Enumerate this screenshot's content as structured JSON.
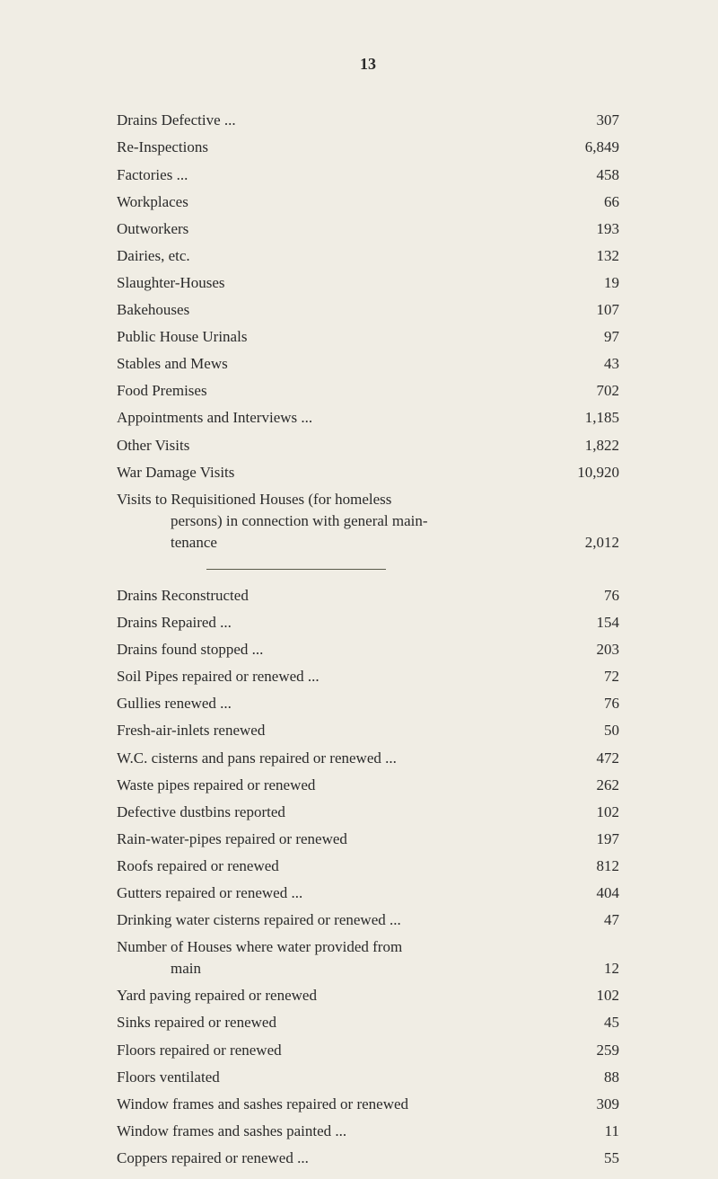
{
  "page_number": "13",
  "section1": [
    {
      "label": "Drains Defective ...",
      "value": "307"
    },
    {
      "label": "Re-Inspections",
      "value": "6,849"
    },
    {
      "label": "Factories ...",
      "value": "458"
    },
    {
      "label": "Workplaces",
      "value": "66"
    },
    {
      "label": "Outworkers",
      "value": "193"
    },
    {
      "label": "Dairies, etc.",
      "value": "132"
    },
    {
      "label": "Slaughter-Houses",
      "value": "19"
    },
    {
      "label": "Bakehouses",
      "value": "107"
    },
    {
      "label": "Public House Urinals",
      "value": "97"
    },
    {
      "label": "Stables and Mews",
      "value": "43"
    },
    {
      "label": "Food Premises",
      "value": "702"
    },
    {
      "label": "Appointments and Interviews ...",
      "value": "1,185"
    },
    {
      "label": "Other Visits",
      "value": "1,822"
    },
    {
      "label": "War Damage Visits",
      "value": "10,920"
    }
  ],
  "visits_multiline": {
    "line1": "Visits to Requisitioned Houses (for homeless",
    "line2": "persons) in connection with general main-",
    "line3": "tenance",
    "value": "2,012"
  },
  "section2": [
    {
      "label": "Drains Reconstructed",
      "value": "76"
    },
    {
      "label": "Drains Repaired ...",
      "value": "154"
    },
    {
      "label": "Drains found stopped ...",
      "value": "203"
    },
    {
      "label": "Soil Pipes repaired or renewed ...",
      "value": "72"
    },
    {
      "label": "Gullies renewed ...",
      "value": "76"
    },
    {
      "label": "Fresh-air-inlets renewed",
      "value": "50"
    },
    {
      "label": "W.C. cisterns and pans repaired or renewed ...",
      "value": "472"
    },
    {
      "label": "Waste pipes repaired or renewed",
      "value": "262"
    },
    {
      "label": "Defective dustbins reported",
      "value": "102"
    },
    {
      "label": "Rain-water-pipes repaired or renewed",
      "value": "197"
    },
    {
      "label": "Roofs repaired or renewed",
      "value": "812"
    },
    {
      "label": "Gutters repaired or renewed ...",
      "value": "404"
    },
    {
      "label": "Drinking water cisterns repaired or renewed ...",
      "value": "47"
    }
  ],
  "houses_multiline": {
    "line1": "Number of Houses where water provided from",
    "line2": "main",
    "value": "12"
  },
  "section3": [
    {
      "label": "Yard paving repaired or renewed",
      "value": "102"
    },
    {
      "label": "Sinks repaired or renewed",
      "value": "45"
    },
    {
      "label": "Floors repaired or renewed",
      "value": "259"
    },
    {
      "label": "Floors ventilated",
      "value": "88"
    },
    {
      "label": "Window frames and sashes repaired or renewed",
      "value": "309"
    },
    {
      "label": "Window frames and sashes painted ...",
      "value": "11"
    },
    {
      "label": "Coppers repaired or renewed ...",
      "value": "55"
    }
  ]
}
